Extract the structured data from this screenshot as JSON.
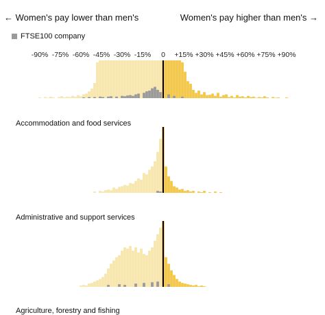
{
  "header": {
    "left_label": "← Women's pay lower than men's",
    "right_label": "Women's pay higher than men's →"
  },
  "legend": {
    "ftse_label": "FTSE100 company",
    "ftse_color": "#9a9a9a"
  },
  "colors": {
    "lower": "#f7e6ae",
    "higher": "#f3c84a",
    "zero_line": "#000000",
    "ftse": "#9a9a9a"
  },
  "chart_data": [
    {
      "type": "bar",
      "title": "",
      "xlabel": "",
      "ylabel": "",
      "x_unit": "% difference in pay",
      "xlim": [
        -100,
        100
      ],
      "tick_values": [
        -90,
        -75,
        -60,
        -45,
        -30,
        -15,
        0,
        15,
        30,
        45,
        60,
        75,
        90
      ],
      "tick_labels": [
        "-90%",
        "-75%",
        "-60%",
        "-45%",
        "-30%",
        "-15%",
        "0",
        "+15%",
        "+30%",
        "+45%",
        "+60%",
        "+75%",
        "+90%"
      ],
      "x": [
        -90,
        -88,
        -86,
        -84,
        -82,
        -80,
        -78,
        -76,
        -74,
        -72,
        -70,
        -68,
        -66,
        -64,
        -62,
        -60,
        -58,
        -56,
        -54,
        -52,
        -50,
        -48,
        -46,
        -44,
        -42,
        -40,
        -38,
        -36,
        -34,
        -32,
        -30,
        -28,
        -26,
        -24,
        -22,
        -20,
        -18,
        -16,
        -14,
        -12,
        -10,
        -8,
        -6,
        -4,
        -2,
        0,
        2,
        4,
        6,
        8,
        10,
        12,
        14,
        16,
        18,
        20,
        22,
        24,
        26,
        28,
        30,
        32,
        34,
        36,
        38,
        40,
        42,
        44,
        46,
        48,
        50,
        52,
        54,
        56,
        58,
        60,
        62,
        64,
        66,
        68,
        70,
        72,
        74,
        76,
        78,
        80,
        82,
        84,
        86,
        88,
        90
      ],
      "values": [
        2,
        0,
        3,
        1,
        4,
        2,
        0,
        3,
        5,
        2,
        4,
        3,
        6,
        4,
        8,
        5,
        10,
        12,
        18,
        25,
        40,
        95,
        100,
        100,
        100,
        100,
        100,
        100,
        100,
        100,
        100,
        100,
        100,
        100,
        100,
        100,
        100,
        100,
        100,
        100,
        100,
        100,
        100,
        100,
        100,
        100,
        100,
        100,
        100,
        100,
        100,
        100,
        95,
        70,
        45,
        38,
        22,
        14,
        20,
        10,
        16,
        8,
        9,
        12,
        6,
        14,
        4,
        8,
        10,
        3,
        6,
        2,
        8,
        4,
        5,
        2,
        6,
        3,
        4,
        1,
        3,
        2,
        5,
        2,
        0,
        3,
        1,
        2,
        0,
        0,
        2
      ],
      "ftse_x": [
        -58,
        -54,
        -50,
        -46,
        -44,
        -40,
        -38,
        -34,
        -30,
        -28,
        -26,
        -24,
        -22,
        -20,
        -18,
        -14,
        -12,
        -10,
        -8,
        -6,
        -4,
        -2,
        4,
        8,
        14
      ],
      "ftse_values": [
        2,
        3,
        3,
        4,
        3,
        4,
        5,
        4,
        6,
        5,
        7,
        8,
        6,
        10,
        12,
        14,
        18,
        20,
        26,
        30,
        22,
        16,
        10,
        6,
        4
      ]
    },
    {
      "type": "bar",
      "title": "Accommodation and food services",
      "x_unit": "% difference in pay",
      "xlim": [
        -100,
        100
      ],
      "x": [
        -50,
        -48,
        -46,
        -44,
        -42,
        -40,
        -38,
        -36,
        -34,
        -32,
        -30,
        -28,
        -26,
        -24,
        -22,
        -20,
        -18,
        -16,
        -14,
        -12,
        -10,
        -8,
        -6,
        -4,
        -2,
        0,
        2,
        4,
        6,
        8,
        10,
        12,
        14,
        16,
        18,
        20,
        22,
        24,
        26,
        28,
        30,
        32,
        34,
        36,
        38,
        40,
        42,
        44,
        46,
        48,
        50,
        52,
        54,
        56,
        58,
        60,
        62,
        64,
        66,
        68,
        70
      ],
      "values": [
        2,
        0,
        3,
        2,
        4,
        5,
        4,
        8,
        6,
        9,
        10,
        12,
        11,
        15,
        14,
        18,
        22,
        20,
        30,
        28,
        35,
        40,
        48,
        62,
        82,
        100,
        40,
        25,
        18,
        10,
        8,
        5,
        6,
        3,
        4,
        2,
        3,
        0,
        2,
        1,
        3,
        0,
        1,
        0,
        2,
        0,
        1,
        0,
        0,
        0,
        0,
        0,
        0,
        0,
        0,
        0,
        0,
        0,
        0,
        0,
        0
      ],
      "ftse_x": [
        -4,
        -2
      ],
      "ftse_values": [
        3,
        2
      ]
    },
    {
      "type": "bar",
      "title": "Administrative and support services",
      "x_unit": "% difference in pay",
      "xlim": [
        -100,
        100
      ],
      "x": [
        -60,
        -58,
        -56,
        -54,
        -52,
        -50,
        -48,
        -46,
        -44,
        -42,
        -40,
        -38,
        -36,
        -34,
        -32,
        -30,
        -28,
        -26,
        -24,
        -22,
        -20,
        -18,
        -16,
        -14,
        -12,
        -10,
        -8,
        -6,
        -4,
        -2,
        0,
        2,
        4,
        6,
        8,
        10,
        12,
        14,
        16,
        18,
        20,
        22,
        24,
        26,
        28,
        30,
        32,
        34,
        36,
        38,
        40,
        42,
        44,
        46,
        48,
        50,
        52,
        54,
        56,
        58,
        60,
        62,
        64,
        66,
        68,
        70
      ],
      "values": [
        2,
        3,
        2,
        5,
        6,
        8,
        10,
        12,
        15,
        20,
        28,
        35,
        40,
        45,
        48,
        55,
        60,
        58,
        62,
        55,
        60,
        52,
        58,
        50,
        48,
        55,
        60,
        70,
        80,
        90,
        100,
        45,
        35,
        25,
        18,
        12,
        8,
        6,
        5,
        4,
        3,
        2,
        3,
        1,
        2,
        1,
        0,
        0,
        0,
        0,
        0,
        0,
        0,
        0,
        0,
        0,
        0,
        0,
        0,
        0,
        0,
        0,
        0,
        0,
        0,
        0
      ],
      "ftse_x": [
        -40,
        -32,
        -28,
        -20,
        -14,
        -8,
        -4,
        4
      ],
      "ftse_values": [
        3,
        4,
        3,
        5,
        6,
        7,
        8,
        4
      ]
    },
    {
      "type": "bar",
      "title": "Agriculture, forestry and fishing"
    }
  ]
}
